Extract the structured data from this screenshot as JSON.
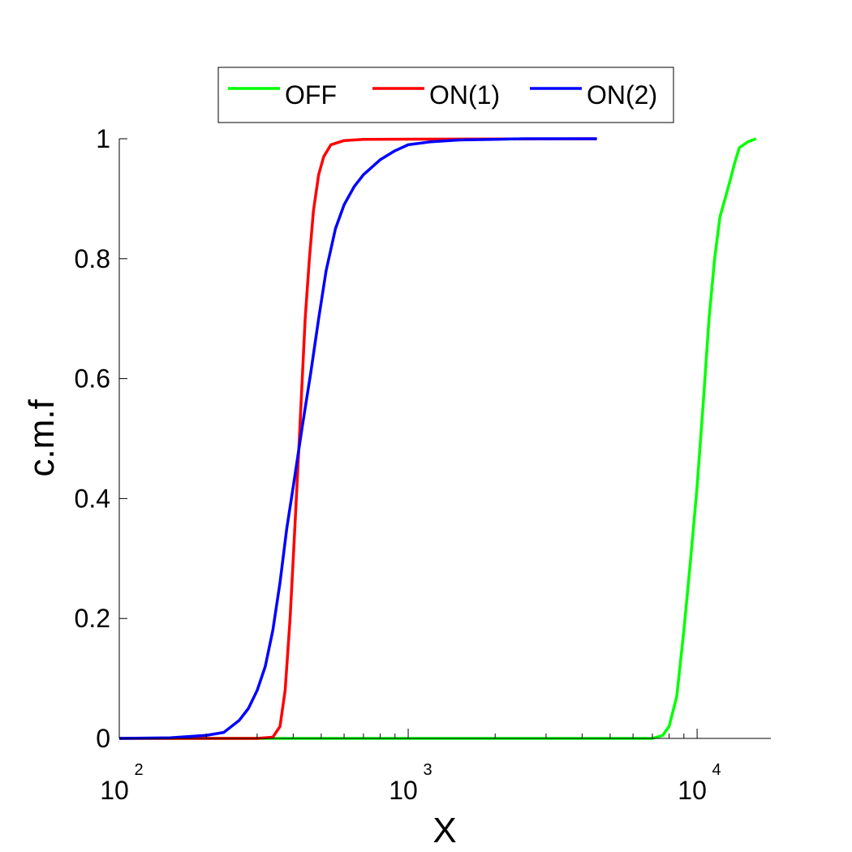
{
  "chart_data": {
    "type": "line",
    "title": "",
    "xlabel": "X",
    "ylabel": "c.m.f",
    "x_scale": "log",
    "xlim": [
      100,
      18000
    ],
    "ylim": [
      0,
      1
    ],
    "grid": false,
    "legend_position": "top-center",
    "x_tick_labels": [
      {
        "value": 100,
        "base": "10",
        "exp": "2"
      },
      {
        "value": 1000,
        "base": "10",
        "exp": "3"
      },
      {
        "value": 10000,
        "base": "10",
        "exp": "4"
      }
    ],
    "y_ticks": [
      0,
      0.2,
      0.4,
      0.6,
      0.8,
      1
    ],
    "y_tick_labels": [
      "0",
      "0.2",
      "0.4",
      "0.6",
      "0.8",
      "1"
    ],
    "series": [
      {
        "name": "OFF",
        "color": "#00ff00",
        "points": [
          [
            100,
            0
          ],
          [
            7000,
            0
          ],
          [
            7600,
            0.005
          ],
          [
            8000,
            0.02
          ],
          [
            8500,
            0.07
          ],
          [
            9000,
            0.18
          ],
          [
            9500,
            0.3
          ],
          [
            10000,
            0.42
          ],
          [
            10500,
            0.56
          ],
          [
            11000,
            0.7
          ],
          [
            11500,
            0.8
          ],
          [
            12000,
            0.87
          ],
          [
            12500,
            0.9
          ],
          [
            13000,
            0.93
          ],
          [
            13500,
            0.96
          ],
          [
            14000,
            0.985
          ],
          [
            15000,
            0.995
          ],
          [
            16000,
            1
          ]
        ]
      },
      {
        "name": "ON(1)",
        "color": "#ff0000",
        "points": [
          [
            100,
            0
          ],
          [
            300,
            0
          ],
          [
            340,
            0.002
          ],
          [
            360,
            0.02
          ],
          [
            375,
            0.08
          ],
          [
            390,
            0.2
          ],
          [
            400,
            0.3
          ],
          [
            410,
            0.4
          ],
          [
            420,
            0.5
          ],
          [
            430,
            0.6
          ],
          [
            440,
            0.7
          ],
          [
            455,
            0.8
          ],
          [
            470,
            0.88
          ],
          [
            490,
            0.94
          ],
          [
            510,
            0.97
          ],
          [
            540,
            0.99
          ],
          [
            600,
            0.997
          ],
          [
            700,
            0.999
          ],
          [
            4500,
            1
          ]
        ]
      },
      {
        "name": "ON(2)",
        "color": "#0000ff",
        "points": [
          [
            100,
            0
          ],
          [
            150,
            0.001
          ],
          [
            200,
            0.005
          ],
          [
            230,
            0.01
          ],
          [
            260,
            0.03
          ],
          [
            280,
            0.05
          ],
          [
            300,
            0.08
          ],
          [
            320,
            0.12
          ],
          [
            340,
            0.18
          ],
          [
            360,
            0.26
          ],
          [
            380,
            0.35
          ],
          [
            400,
            0.42
          ],
          [
            430,
            0.52
          ],
          [
            460,
            0.61
          ],
          [
            490,
            0.7
          ],
          [
            520,
            0.78
          ],
          [
            560,
            0.85
          ],
          [
            600,
            0.89
          ],
          [
            650,
            0.92
          ],
          [
            700,
            0.94
          ],
          [
            800,
            0.965
          ],
          [
            900,
            0.98
          ],
          [
            1000,
            0.99
          ],
          [
            1200,
            0.995
          ],
          [
            1500,
            0.998
          ],
          [
            2000,
            0.999
          ],
          [
            2500,
            1
          ],
          [
            4500,
            1
          ]
        ]
      }
    ]
  }
}
